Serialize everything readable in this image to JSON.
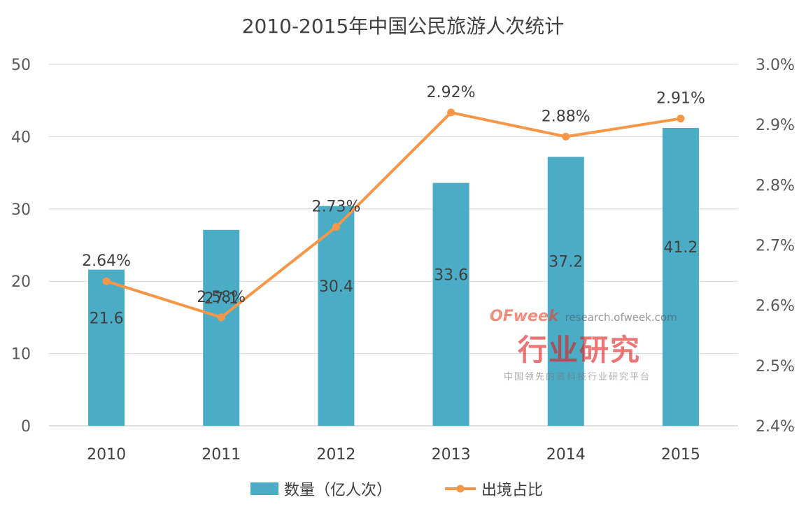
{
  "chart_data": {
    "type": "bar",
    "title": "2010-2015年中国公民旅游人次统计",
    "categories": [
      "2010",
      "2011",
      "2012",
      "2013",
      "2014",
      "2015"
    ],
    "series": [
      {
        "name": "数量（亿人次）",
        "type": "bar",
        "axis": "left",
        "values": [
          21.6,
          27.1,
          30.4,
          33.6,
          37.2,
          41.2
        ],
        "labels": [
          "21.6",
          "27.1",
          "30.4",
          "33.6",
          "37.2",
          "41.2"
        ],
        "color": "#4bacc6"
      },
      {
        "name": "出境占比",
        "type": "line",
        "axis": "right",
        "values": [
          2.64,
          2.58,
          2.73,
          2.92,
          2.88,
          2.91
        ],
        "labels": [
          "2.64%",
          "2.58%",
          "2.73%",
          "2.92%",
          "2.88%",
          "2.91%"
        ],
        "color": "#f79646"
      }
    ],
    "y_left": {
      "min": 0,
      "max": 50,
      "ticks": [
        "0",
        "10",
        "20",
        "30",
        "40",
        "50"
      ]
    },
    "y_right": {
      "min": 2.4,
      "max": 3.0,
      "ticks": [
        "2.4%",
        "2.5%",
        "2.6%",
        "2.7%",
        "2.8%",
        "2.9%",
        "3.0%"
      ]
    },
    "grid": true,
    "legend": "bottom"
  },
  "watermark": {
    "brand": "OFweek",
    "url": "research.ofweek.com",
    "main": "行业研究",
    "sub": "中国领先的高科技行业研究平台"
  }
}
